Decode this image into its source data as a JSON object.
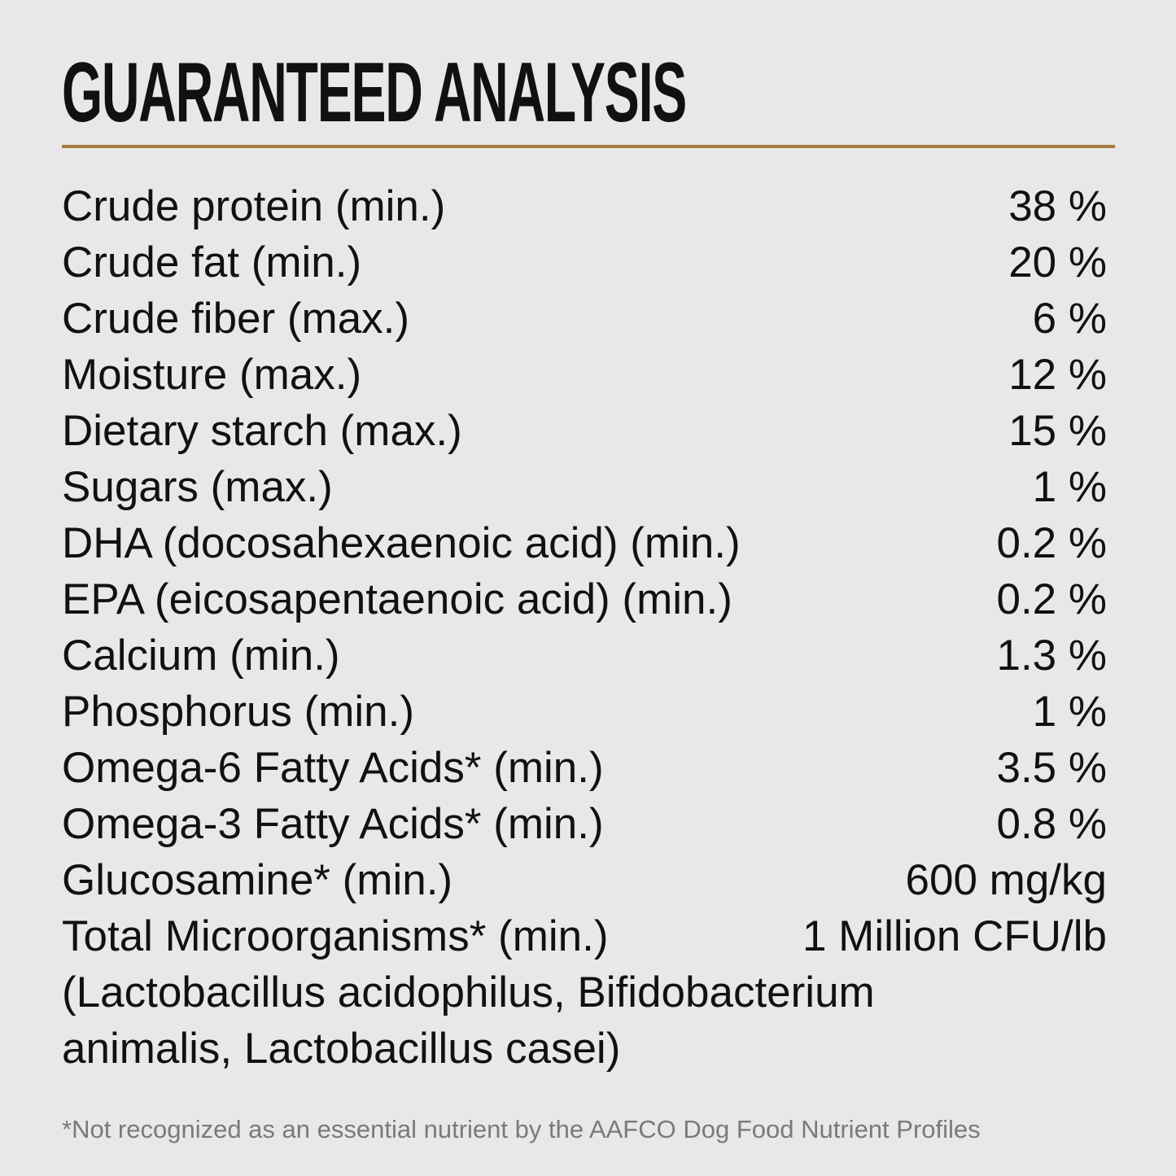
{
  "header": {
    "title": "GUARANTEED ANALYSIS"
  },
  "table": {
    "rows": [
      {
        "label": "Crude protein (min.)",
        "value": "38 %"
      },
      {
        "label": "Crude fat (min.)",
        "value": "20 %"
      },
      {
        "label": "Crude fiber (max.)",
        "value": "6 %"
      },
      {
        "label": "Moisture (max.)",
        "value": "12 %"
      },
      {
        "label": "Dietary starch (max.)",
        "value": "15 %"
      },
      {
        "label": "Sugars (max.)",
        "value": "1 %"
      },
      {
        "label": "DHA (docosahexaenoic acid) (min.)",
        "value": "0.2 %"
      },
      {
        "label": "EPA (eicosapentaenoic acid) (min.)",
        "value": "0.2 %"
      },
      {
        "label": "Calcium (min.)",
        "value": "1.3 %"
      },
      {
        "label": "Phosphorus (min.)",
        "value": "1 %"
      },
      {
        "label": "Omega-6 Fatty Acids* (min.)",
        "value": "3.5 %"
      },
      {
        "label": "Omega-3 Fatty Acids* (min.)",
        "value": "0.8 %"
      },
      {
        "label": "Glucosamine* (min.)",
        "value": "600 mg/kg"
      },
      {
        "label": "Total Microorganisms* (min.)",
        "value": "1 Million CFU/lb",
        "detail": [
          "(Lactobacillus acidophilus, Bifidobacterium",
          "animalis, Lactobacillus casei)"
        ]
      }
    ]
  },
  "footnote": "*Not recognized as an essential nutrient by the AAFCO Dog Food Nutrient Profiles"
}
